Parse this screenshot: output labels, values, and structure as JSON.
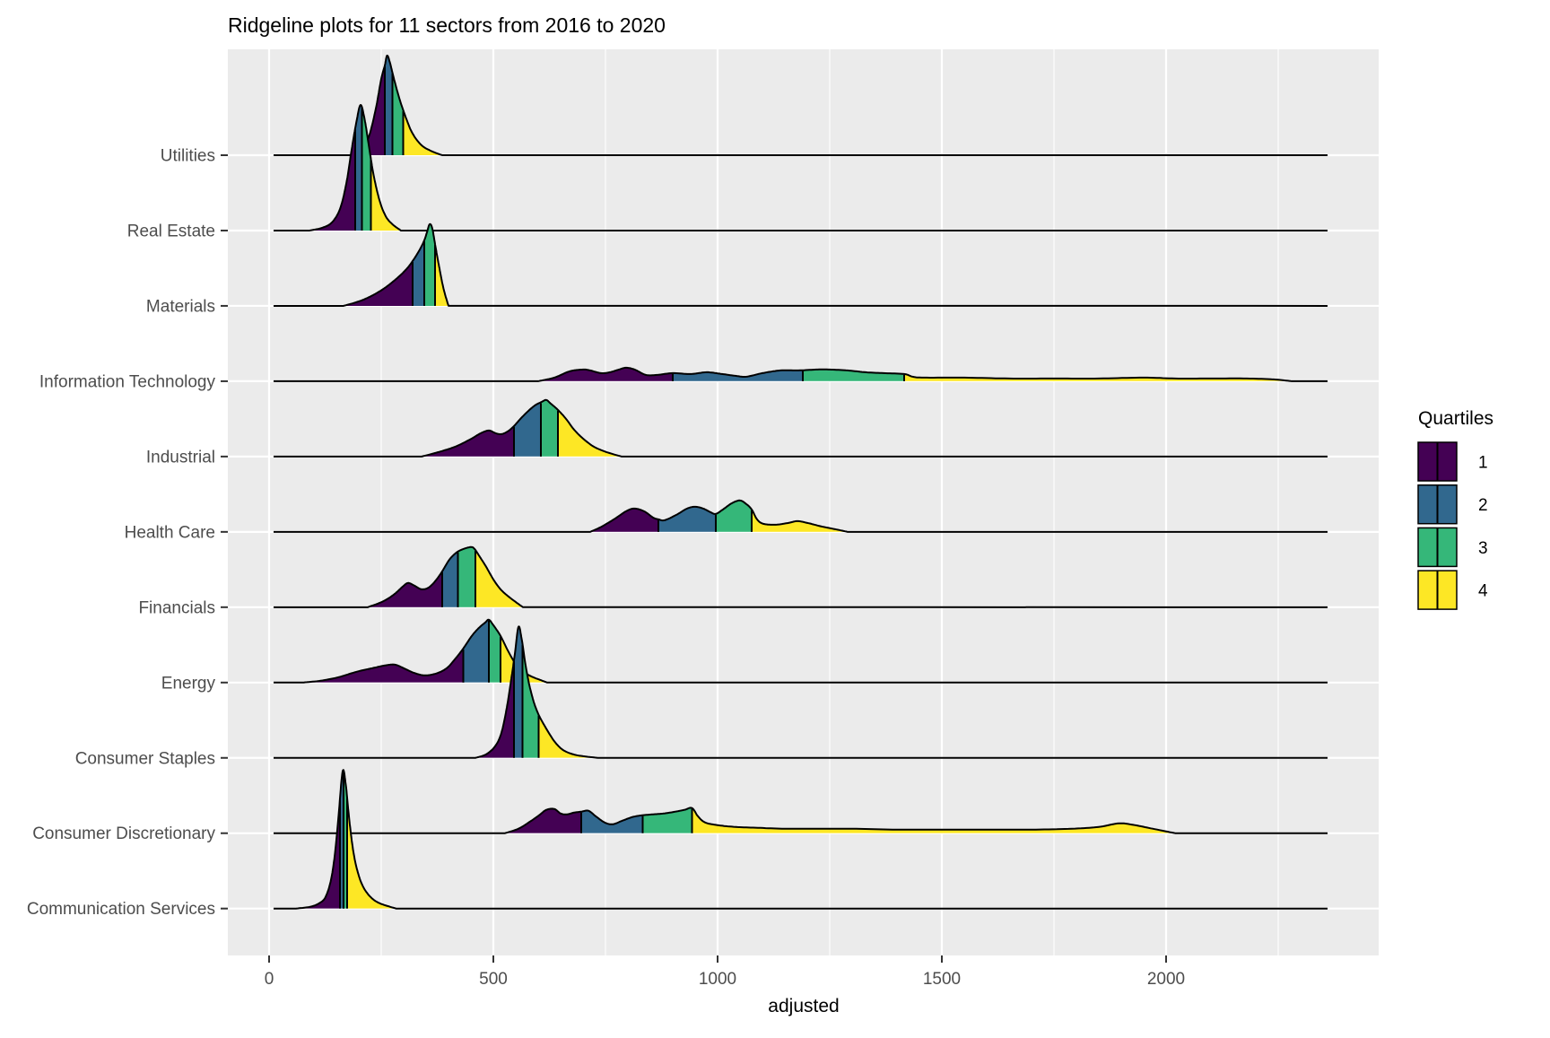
{
  "title": "Ridgeline plots for 11 sectors from 2016 to 2020",
  "x_axis": {
    "label": "adjusted",
    "ticks": [
      0,
      500,
      1000,
      1500,
      2000
    ],
    "minor_ticks": [
      250,
      750,
      1250,
      1750,
      2250
    ]
  },
  "y_axis": {
    "categories_top_to_bottom": [
      "Utilities",
      "Real Estate",
      "Materials",
      "Information Technology",
      "Industrial",
      "Health Care",
      "Financials",
      "Energy",
      "Consumer Staples",
      "Consumer Discretionary",
      "Communication Services"
    ]
  },
  "legend": {
    "title": "Quartiles",
    "entries": [
      {
        "label": "1",
        "color": "#440154"
      },
      {
        "label": "2",
        "color": "#31688E"
      },
      {
        "label": "3",
        "color": "#35B779"
      },
      {
        "label": "4",
        "color": "#FDE725"
      }
    ]
  },
  "colors": {
    "panel_bg": "#EBEBEB",
    "grid": "#FFFFFF",
    "outline": "#000000",
    "axis_text": "#4D4D4D",
    "tick_mark": "#333333",
    "quartile_1": "#440154",
    "quartile_2": "#31688E",
    "quartile_3": "#35B779",
    "quartile_4": "#FDE725"
  },
  "chart_data": {
    "type": "ridgeline",
    "x_label": "adjusted",
    "baseline_x_range": [
      10,
      2360
    ],
    "height_units": "pixels_above_baseline",
    "sectors": [
      {
        "label": "Utilities",
        "min": 185,
        "q1": 258,
        "q2": 275,
        "q3": 299,
        "max": 386,
        "density": [
          [
            185,
            0
          ],
          [
            205,
            6
          ],
          [
            222,
            20
          ],
          [
            238,
            52
          ],
          [
            250,
            85
          ],
          [
            258,
            100
          ],
          [
            263,
            111
          ],
          [
            269,
            104
          ],
          [
            278,
            86
          ],
          [
            290,
            64
          ],
          [
            302,
            46
          ],
          [
            318,
            26
          ],
          [
            338,
            12
          ],
          [
            360,
            5
          ],
          [
            386,
            0
          ]
        ]
      },
      {
        "label": "Real Estate",
        "min": 90,
        "q1": 192,
        "q2": 207,
        "q3": 227,
        "max": 294,
        "density": [
          [
            90,
            0
          ],
          [
            118,
            3
          ],
          [
            140,
            9
          ],
          [
            158,
            24
          ],
          [
            172,
            52
          ],
          [
            184,
            90
          ],
          [
            195,
            122
          ],
          [
            204,
            140
          ],
          [
            213,
            124
          ],
          [
            222,
            96
          ],
          [
            233,
            62
          ],
          [
            246,
            34
          ],
          [
            260,
            16
          ],
          [
            275,
            7
          ],
          [
            294,
            0
          ]
        ]
      },
      {
        "label": "Materials",
        "min": 166,
        "q1": 320,
        "q2": 346,
        "q3": 370,
        "max": 400,
        "density": [
          [
            166,
            0
          ],
          [
            200,
            5
          ],
          [
            228,
            11
          ],
          [
            258,
            20
          ],
          [
            288,
            32
          ],
          [
            308,
            42
          ],
          [
            320,
            50
          ],
          [
            334,
            61
          ],
          [
            346,
            73
          ],
          [
            352,
            82
          ],
          [
            358,
            91
          ],
          [
            364,
            86
          ],
          [
            371,
            66
          ],
          [
            379,
            44
          ],
          [
            389,
            19
          ],
          [
            400,
            0
          ]
        ]
      },
      {
        "label": "Information Technology",
        "min": 600,
        "q1": 900,
        "q2": 1190,
        "q3": 1416,
        "max": 2280,
        "density": [
          [
            600,
            0
          ],
          [
            636,
            4
          ],
          [
            670,
            11
          ],
          [
            700,
            13
          ],
          [
            716,
            12
          ],
          [
            740,
            9
          ],
          [
            760,
            10
          ],
          [
            780,
            13
          ],
          [
            796,
            15
          ],
          [
            815,
            13
          ],
          [
            840,
            7
          ],
          [
            865,
            7
          ],
          [
            900,
            9
          ],
          [
            940,
            8
          ],
          [
            976,
            10
          ],
          [
            1010,
            8
          ],
          [
            1040,
            6
          ],
          [
            1064,
            5
          ],
          [
            1100,
            9
          ],
          [
            1140,
            12
          ],
          [
            1180,
            12
          ],
          [
            1220,
            13
          ],
          [
            1250,
            13
          ],
          [
            1290,
            12
          ],
          [
            1330,
            10
          ],
          [
            1370,
            9
          ],
          [
            1416,
            8
          ],
          [
            1435,
            5
          ],
          [
            1460,
            4
          ],
          [
            1550,
            4
          ],
          [
            1650,
            3
          ],
          [
            1750,
            3
          ],
          [
            1850,
            3
          ],
          [
            1950,
            4
          ],
          [
            2020,
            3
          ],
          [
            2100,
            3
          ],
          [
            2180,
            3
          ],
          [
            2240,
            2
          ],
          [
            2280,
            0
          ]
        ]
      },
      {
        "label": "Industrial",
        "min": 340,
        "q1": 546,
        "q2": 606,
        "q3": 644,
        "max": 786,
        "density": [
          [
            340,
            0
          ],
          [
            378,
            5
          ],
          [
            415,
            11
          ],
          [
            448,
            19
          ],
          [
            472,
            26
          ],
          [
            490,
            29
          ],
          [
            505,
            26
          ],
          [
            518,
            25
          ],
          [
            532,
            28
          ],
          [
            546,
            34
          ],
          [
            566,
            45
          ],
          [
            590,
            56
          ],
          [
            608,
            61
          ],
          [
            618,
            63
          ],
          [
            628,
            59
          ],
          [
            644,
            52
          ],
          [
            662,
            42
          ],
          [
            680,
            30
          ],
          [
            700,
            20
          ],
          [
            724,
            11
          ],
          [
            752,
            5
          ],
          [
            786,
            0
          ]
        ]
      },
      {
        "label": "Health Care",
        "min": 716,
        "q1": 868,
        "q2": 996,
        "q3": 1076,
        "max": 1290,
        "density": [
          [
            716,
            0
          ],
          [
            742,
            6
          ],
          [
            772,
            15
          ],
          [
            796,
            23
          ],
          [
            814,
            26
          ],
          [
            836,
            23
          ],
          [
            856,
            16
          ],
          [
            868,
            14
          ],
          [
            882,
            13
          ],
          [
            908,
            19
          ],
          [
            932,
            26
          ],
          [
            950,
            28
          ],
          [
            968,
            26
          ],
          [
            984,
            22
          ],
          [
            996,
            20
          ],
          [
            1012,
            25
          ],
          [
            1032,
            32
          ],
          [
            1050,
            35
          ],
          [
            1064,
            31
          ],
          [
            1076,
            25
          ],
          [
            1088,
            14
          ],
          [
            1102,
            9
          ],
          [
            1130,
            8
          ],
          [
            1158,
            10
          ],
          [
            1178,
            12
          ],
          [
            1200,
            10
          ],
          [
            1232,
            6
          ],
          [
            1262,
            3
          ],
          [
            1290,
            0
          ]
        ]
      },
      {
        "label": "Financials",
        "min": 220,
        "q1": 386,
        "q2": 421,
        "q3": 460,
        "max": 566,
        "density": [
          [
            220,
            0
          ],
          [
            252,
            6
          ],
          [
            278,
            14
          ],
          [
            298,
            23
          ],
          [
            310,
            27
          ],
          [
            324,
            24
          ],
          [
            340,
            20
          ],
          [
            356,
            22
          ],
          [
            372,
            30
          ],
          [
            386,
            40
          ],
          [
            402,
            53
          ],
          [
            418,
            61
          ],
          [
            434,
            65
          ],
          [
            450,
            67
          ],
          [
            458,
            65
          ],
          [
            470,
            56
          ],
          [
            484,
            45
          ],
          [
            500,
            31
          ],
          [
            516,
            20
          ],
          [
            536,
            11
          ],
          [
            566,
            0
          ]
        ]
      },
      {
        "label": "Energy",
        "min": 75,
        "q1": 433,
        "q2": 490,
        "q3": 516,
        "max": 620,
        "density": [
          [
            75,
            0
          ],
          [
            115,
            2
          ],
          [
            155,
            6
          ],
          [
            195,
            12
          ],
          [
            230,
            16
          ],
          [
            258,
            19
          ],
          [
            280,
            20
          ],
          [
            300,
            16
          ],
          [
            322,
            11
          ],
          [
            346,
            8
          ],
          [
            372,
            10
          ],
          [
            396,
            16
          ],
          [
            416,
            27
          ],
          [
            433,
            38
          ],
          [
            452,
            52
          ],
          [
            468,
            61
          ],
          [
            482,
            67
          ],
          [
            490,
            70
          ],
          [
            500,
            64
          ],
          [
            516,
            52
          ],
          [
            532,
            36
          ],
          [
            548,
            22
          ],
          [
            564,
            13
          ],
          [
            584,
            7
          ],
          [
            604,
            3
          ],
          [
            620,
            0
          ]
        ]
      },
      {
        "label": "Consumer Staples",
        "min": 460,
        "q1": 546,
        "q2": 565,
        "q3": 601,
        "max": 733,
        "density": [
          [
            460,
            0
          ],
          [
            484,
            4
          ],
          [
            504,
            13
          ],
          [
            518,
            28
          ],
          [
            530,
            56
          ],
          [
            540,
            88
          ],
          [
            548,
            116
          ],
          [
            556,
            146
          ],
          [
            563,
            133
          ],
          [
            571,
            106
          ],
          [
            579,
            84
          ],
          [
            588,
            66
          ],
          [
            596,
            54
          ],
          [
            604,
            45
          ],
          [
            614,
            36
          ],
          [
            626,
            26
          ],
          [
            640,
            16
          ],
          [
            658,
            8
          ],
          [
            686,
            3
          ],
          [
            733,
            0
          ]
        ]
      },
      {
        "label": "Consumer Discretionary",
        "min": 526,
        "q1": 696,
        "q2": 833,
        "q3": 943,
        "max": 2020,
        "density": [
          [
            526,
            0
          ],
          [
            556,
            5
          ],
          [
            582,
            13
          ],
          [
            602,
            20
          ],
          [
            618,
            26
          ],
          [
            636,
            27
          ],
          [
            650,
            22
          ],
          [
            664,
            21
          ],
          [
            680,
            23
          ],
          [
            696,
            24
          ],
          [
            712,
            25
          ],
          [
            728,
            19
          ],
          [
            748,
            12
          ],
          [
            766,
            10
          ],
          [
            788,
            14
          ],
          [
            810,
            18
          ],
          [
            832,
            20
          ],
          [
            856,
            21
          ],
          [
            880,
            22
          ],
          [
            906,
            24
          ],
          [
            926,
            26
          ],
          [
            943,
            28
          ],
          [
            956,
            19
          ],
          [
            972,
            12
          ],
          [
            1000,
            9
          ],
          [
            1040,
            7
          ],
          [
            1090,
            6
          ],
          [
            1150,
            5
          ],
          [
            1220,
            5
          ],
          [
            1300,
            5
          ],
          [
            1400,
            4
          ],
          [
            1500,
            4
          ],
          [
            1600,
            4
          ],
          [
            1700,
            4
          ],
          [
            1790,
            5
          ],
          [
            1850,
            7
          ],
          [
            1895,
            11
          ],
          [
            1930,
            9
          ],
          [
            1970,
            5
          ],
          [
            2020,
            0
          ]
        ]
      },
      {
        "label": "Communication Services",
        "min": 60,
        "q1": 158,
        "q2": 166,
        "q3": 174,
        "max": 283,
        "density": [
          [
            60,
            0
          ],
          [
            92,
            2
          ],
          [
            112,
            6
          ],
          [
            126,
            13
          ],
          [
            138,
            32
          ],
          [
            147,
            62
          ],
          [
            155,
            104
          ],
          [
            164,
            153
          ],
          [
            171,
            138
          ],
          [
            179,
            98
          ],
          [
            188,
            63
          ],
          [
            198,
            40
          ],
          [
            210,
            24
          ],
          [
            226,
            13
          ],
          [
            246,
            6
          ],
          [
            283,
            0
          ]
        ]
      }
    ]
  }
}
